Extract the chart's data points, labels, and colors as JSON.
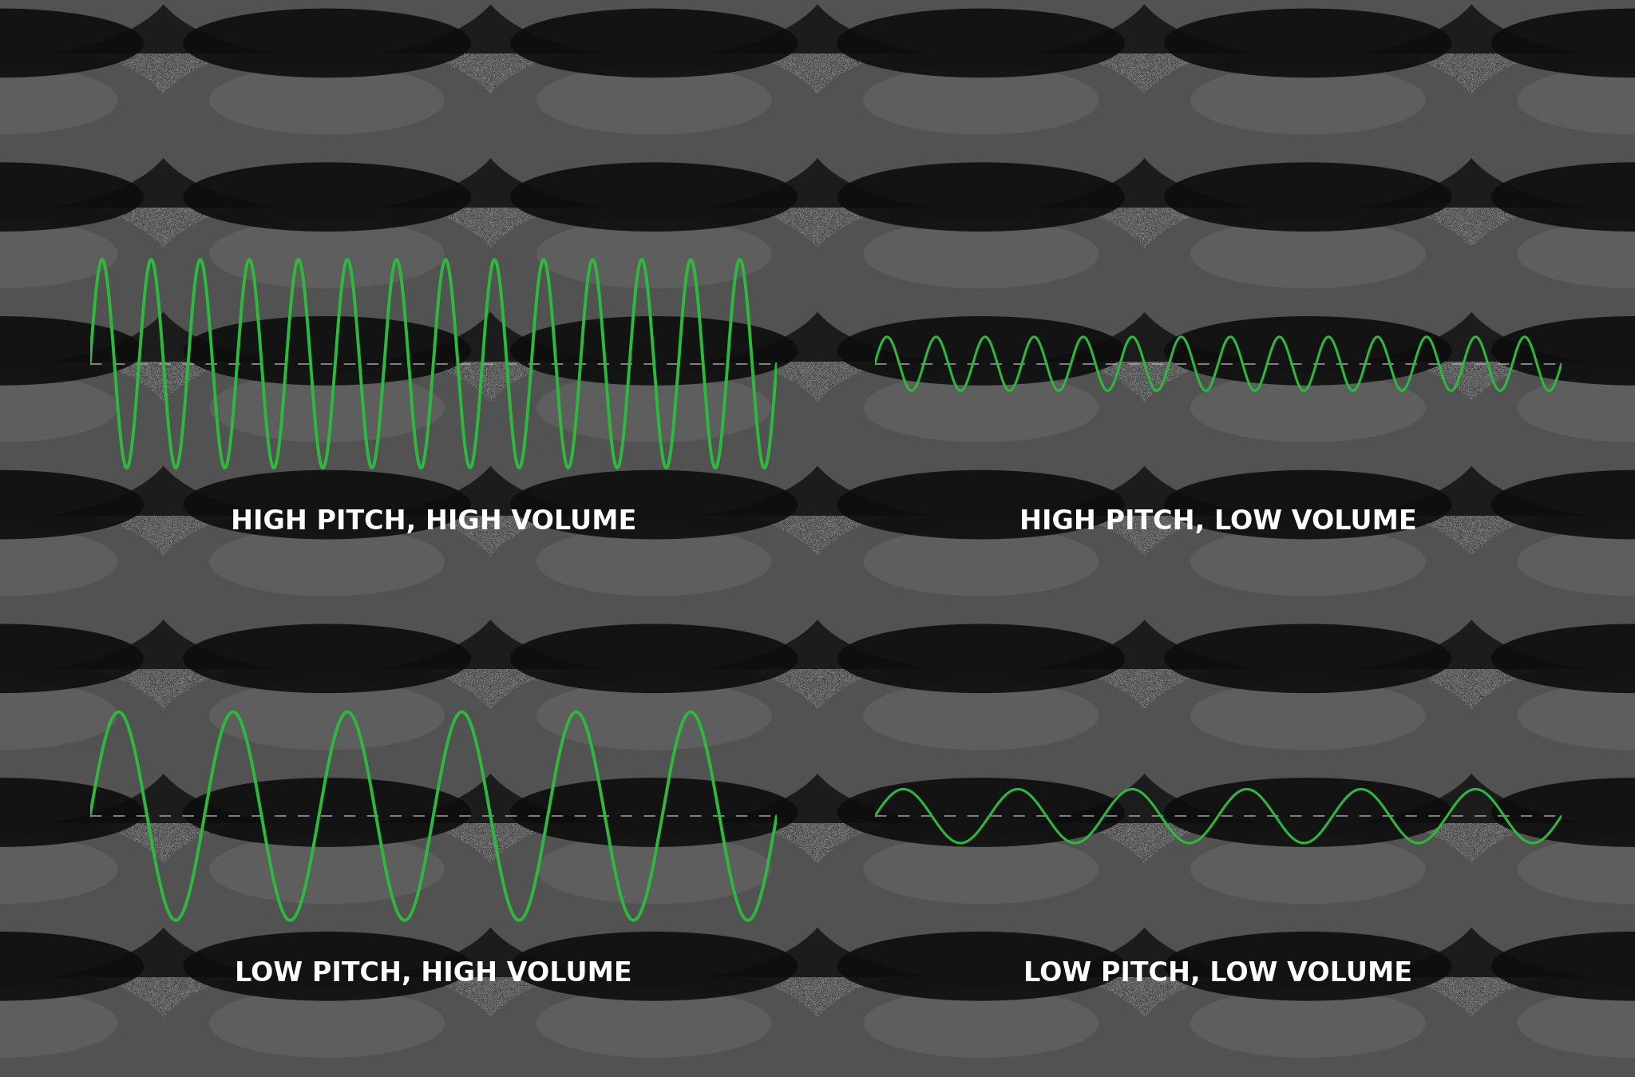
{
  "bg_color_dark": "#1a1a1a",
  "bg_color_mid": "#4a4a4a",
  "bg_color_light": "#606060",
  "wave_color": "#2dba3c",
  "dashed_color": "#aaaaaa",
  "text_color": "#ffffff",
  "panels": [
    {
      "label": "HIGH PITCH, HIGH VOLUME",
      "frequency": 14,
      "amplitude": 0.85,
      "row": 0,
      "col": 0
    },
    {
      "label": "HIGH PITCH, LOW VOLUME",
      "frequency": 14,
      "amplitude": 0.22,
      "row": 0,
      "col": 1
    },
    {
      "label": "LOW PITCH, HIGH VOLUME",
      "frequency": 6,
      "amplitude": 0.85,
      "row": 1,
      "col": 0
    },
    {
      "label": "LOW PITCH, LOW VOLUME",
      "frequency": 6,
      "amplitude": 0.22,
      "row": 1,
      "col": 1
    }
  ],
  "figsize": [
    20.48,
    13.49
  ],
  "dpi": 100,
  "font_size": 24,
  "font_weight": "bold",
  "tile_rows": 7,
  "tile_cols": 5,
  "arch_color_main": "#585858",
  "arch_color_light": "#686868",
  "shadow_color": "#111111",
  "band_color": "#222222"
}
